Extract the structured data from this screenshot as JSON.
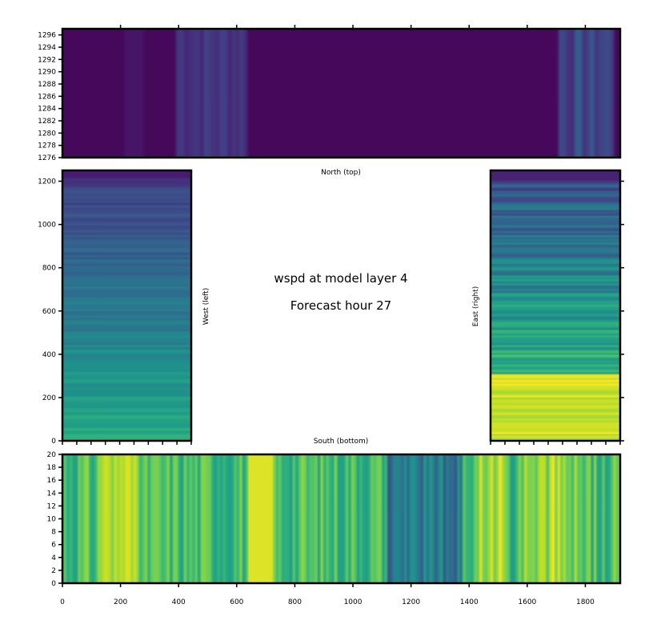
{
  "figure": {
    "title_line1": "wspd at model layer 4",
    "title_line2": "Forecast hour 27"
  },
  "chart_data": [
    {
      "type": "heatmap",
      "panel": "north",
      "label": "North (top)",
      "xlim": [
        0,
        1920
      ],
      "ylim": [
        1276,
        1297
      ],
      "yticks": [
        1276,
        1278,
        1280,
        1282,
        1284,
        1286,
        1288,
        1290,
        1292,
        1294,
        1296
      ],
      "xticks_shared": [
        0,
        200,
        400,
        600,
        800,
        1000,
        1200,
        1400,
        1600,
        1800
      ],
      "dominant_color": "#440154"
    },
    {
      "type": "heatmap",
      "panel": "west",
      "label": "West (left)",
      "xlim": [
        0,
        450
      ],
      "ylim": [
        0,
        1250
      ],
      "yticks": [
        0,
        200,
        400,
        600,
        800,
        1000,
        1200
      ],
      "dominant_color": "#2f8c8c"
    },
    {
      "type": "heatmap",
      "panel": "east",
      "label": "East (right)",
      "xlim": [
        1470,
        1920
      ],
      "ylim": [
        0,
        1250
      ],
      "yticks": [
        0,
        200,
        400,
        600,
        800,
        1000,
        1200
      ],
      "dominant_color": "#2a9a86"
    },
    {
      "type": "heatmap",
      "panel": "south",
      "label": "South (bottom)",
      "xlim": [
        0,
        1920
      ],
      "ylim": [
        0,
        20
      ],
      "xticks": [
        0,
        200,
        400,
        600,
        800,
        1000,
        1200,
        1400,
        1600,
        1800
      ],
      "yticks": [
        0,
        2,
        4,
        6,
        8,
        10,
        12,
        14,
        16,
        18,
        20
      ],
      "dominant_color": "#52b86f"
    }
  ],
  "colors": {
    "colormap": "viridis",
    "low": "#440154",
    "mid": "#21918c",
    "high": "#fde725"
  }
}
